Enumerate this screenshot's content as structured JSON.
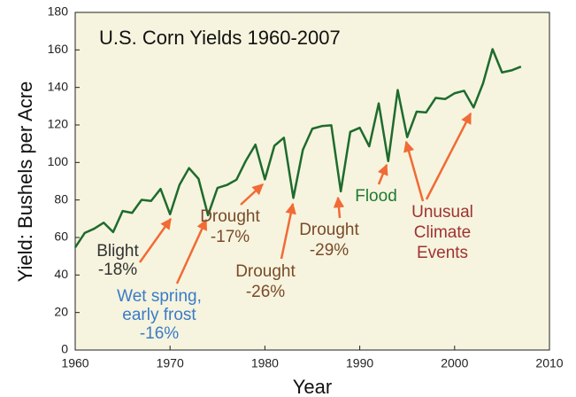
{
  "chart_data": {
    "type": "line",
    "title": "U.S. Corn Yields 1960-2007",
    "x_label": "Year",
    "y_label": "Yield: Bushels per Acre",
    "x": [
      1960,
      1961,
      1962,
      1963,
      1964,
      1965,
      1966,
      1967,
      1968,
      1969,
      1970,
      1971,
      1972,
      1973,
      1974,
      1975,
      1976,
      1977,
      1978,
      1979,
      1980,
      1981,
      1982,
      1983,
      1984,
      1985,
      1986,
      1987,
      1988,
      1989,
      1990,
      1991,
      1992,
      1993,
      1994,
      1995,
      1996,
      1997,
      1998,
      1999,
      2000,
      2001,
      2002,
      2003,
      2004,
      2005,
      2006,
      2007
    ],
    "series": [
      {
        "color": "#1e6b2e",
        "values": [
          54.7,
          62.4,
          64.7,
          67.9,
          62.9,
          74.1,
          73.1,
          80.1,
          79.5,
          85.9,
          72.4,
          88.1,
          97.0,
          91.3,
          71.9,
          86.4,
          88.0,
          90.8,
          101.0,
          109.5,
          91.0,
          108.9,
          113.2,
          81.1,
          106.7,
          118.0,
          119.4,
          119.8,
          84.6,
          116.3,
          118.5,
          108.6,
          131.5,
          100.7,
          138.6,
          113.5,
          127.1,
          126.7,
          134.4,
          133.8,
          136.9,
          138.2,
          129.3,
          142.2,
          160.4,
          148.0,
          149.1,
          151.1
        ]
      }
    ],
    "xlim": [
      1960,
      2010
    ],
    "xticks": [
      1960,
      1970,
      1980,
      1990,
      2000,
      2010
    ],
    "ylim": [
      0,
      180
    ],
    "yticks": [
      0,
      20,
      40,
      60,
      80,
      100,
      120,
      140,
      160,
      180
    ],
    "background": "#f6f4de",
    "arrow_color": "#f26a35",
    "annotations": [
      {
        "lines": [
          "Blight",
          "-18%"
        ],
        "color": "#333333"
      },
      {
        "lines": [
          "Wet spring,",
          "early frost",
          "-16%"
        ],
        "color": "#3a7bc8"
      },
      {
        "lines": [
          "Drought",
          "-17%"
        ],
        "color": "#7a4a2a"
      },
      {
        "lines": [
          "Drought",
          "-26%"
        ],
        "color": "#7a4a2a"
      },
      {
        "lines": [
          "Drought",
          "-29%"
        ],
        "color": "#7a4a2a"
      },
      {
        "lines": [
          "Flood"
        ],
        "color": "#1e7a34"
      },
      {
        "lines": [
          "Unusual",
          "Climate",
          "Events"
        ],
        "color": "#a03232"
      }
    ]
  }
}
